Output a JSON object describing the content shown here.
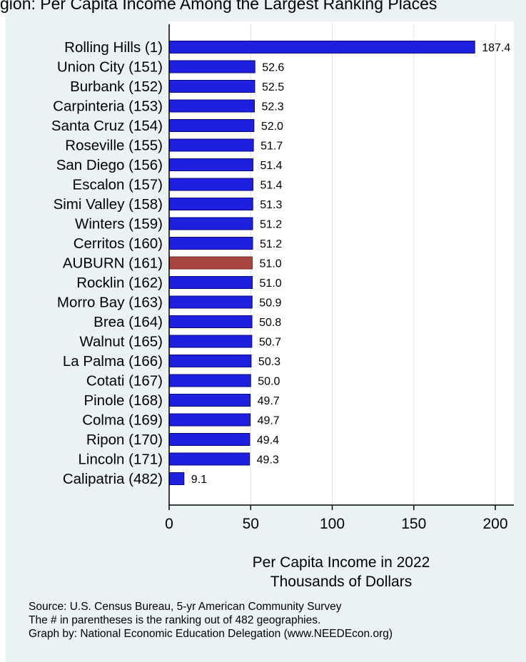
{
  "chart_data": {
    "type": "bar",
    "orientation": "horizontal",
    "title": "Per Capita Income in 2022",
    "title_clipped": "gion: Per Capita Income Among the Largest Ranking Places",
    "xlabel": "Per Capita Income in 2022",
    "xlabel_line2": "Thousands of Dollars",
    "xlim": [
      0,
      210
    ],
    "xticks": [
      "0",
      "50",
      "100",
      "150",
      "200"
    ],
    "xtick_values": [
      0,
      50,
      100,
      150,
      200
    ],
    "grid": true,
    "categories": [
      "Rolling Hills  (1)",
      "Union City (151)",
      "Burbank (152)",
      "Carpinteria (153)",
      "Santa Cruz (154)",
      "Roseville (155)",
      "San Diego (156)",
      "Escalon (157)",
      "Simi Valley (158)",
      "Winters (159)",
      "Cerritos (160)",
      "AUBURN (161)",
      "Rocklin (162)",
      "Morro Bay (163)",
      "Brea (164)",
      "Walnut (165)",
      "La Palma (166)",
      "Cotati (167)",
      "Pinole (168)",
      "Colma (169)",
      "Ripon (170)",
      "Lincoln (171)",
      "Calipatria (482)"
    ],
    "values": [
      187.4,
      52.6,
      52.5,
      52.3,
      52.0,
      51.7,
      51.4,
      51.4,
      51.3,
      51.2,
      51.2,
      51.0,
      51.0,
      50.9,
      50.8,
      50.7,
      50.3,
      50.0,
      49.7,
      49.7,
      49.4,
      49.3,
      9.1
    ],
    "value_labels": [
      "187.4",
      "52.6",
      "52.5",
      "52.3",
      "52.0",
      "51.7",
      "51.4",
      "51.4",
      "51.3",
      "51.2",
      "51.2",
      "51.0",
      "51.0",
      "50.9",
      "50.8",
      "50.7",
      "50.3",
      "50.0",
      "49.7",
      "49.7",
      "49.4",
      "49.3",
      "9.1"
    ],
    "highlight_index": 11,
    "colors": {
      "bar": "#1f1fe0",
      "bar_border": "#0a0a80",
      "highlight": "#a8453f",
      "highlight_border": "#7a2f2a",
      "grid": "#d9e2e3",
      "background": "#eaf2f3",
      "plot_background": "#ffffff"
    }
  },
  "footnotes": {
    "source": "Source: U.S. Census Bureau, 5-yr American Community Survey",
    "ranking_note": "The # in parentheses is the ranking out of 482 geographies.",
    "credit": "Graph by: National Economic Education Delegation (www.NEEDEcon.org)"
  }
}
